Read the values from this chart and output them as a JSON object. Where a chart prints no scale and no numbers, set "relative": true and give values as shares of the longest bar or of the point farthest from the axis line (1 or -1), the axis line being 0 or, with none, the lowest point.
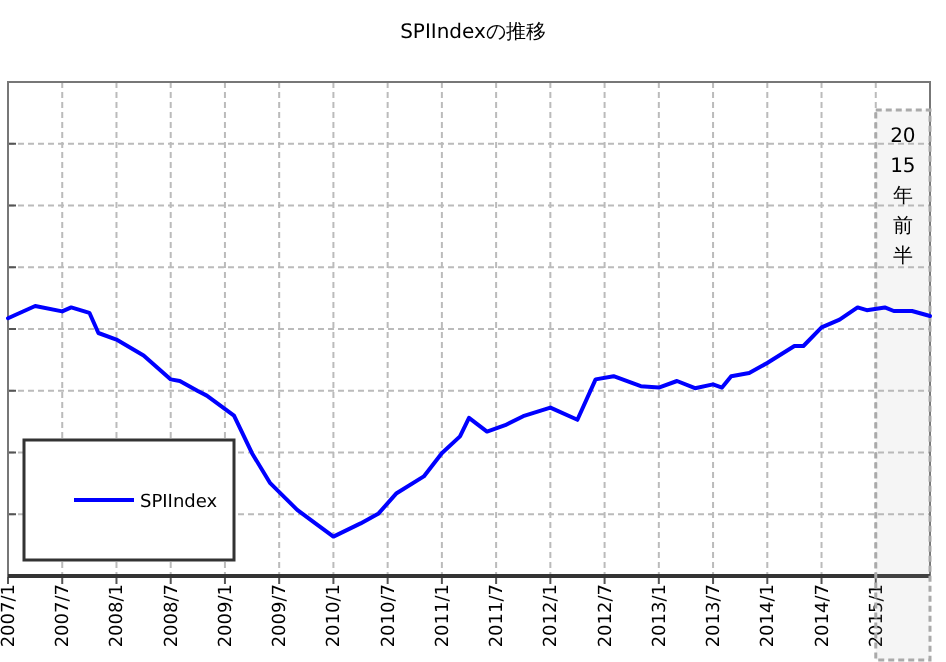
{
  "chart_data": {
    "type": "line",
    "title": "SPIIndexの推移",
    "relative": true,
    "x": [
      "2007-01",
      "2007-04",
      "2007-07",
      "2007-08",
      "2007-10",
      "2007-11",
      "2008-01",
      "2008-04",
      "2008-07",
      "2008-08",
      "2008-10",
      "2008-11",
      "2009-02",
      "2009-04",
      "2009-06",
      "2009-09",
      "2009-11",
      "2010-01",
      "2010-04",
      "2010-06",
      "2010-08",
      "2010-11",
      "2011-01",
      "2011-03",
      "2011-04",
      "2011-06",
      "2011-08",
      "2011-10",
      "2012-01",
      "2012-04",
      "2012-06",
      "2012-08",
      "2012-11",
      "2013-01",
      "2013-03",
      "2013-05",
      "2013-07",
      "2013-08",
      "2013-09",
      "2013-11",
      "2014-01",
      "2014-04",
      "2014-05",
      "2014-07",
      "2014-09",
      "2014-11",
      "2014-12",
      "2015-02",
      "2015-03",
      "2015-05",
      "2015-07"
    ],
    "series": [
      {
        "name": "SPIIndex",
        "color": "#0000ff",
        "values": [
          0.955,
          1.0,
          0.98,
          0.995,
          0.975,
          0.9,
          0.876,
          0.817,
          0.728,
          0.722,
          0.685,
          0.668,
          0.594,
          0.455,
          0.344,
          0.245,
          0.195,
          0.146,
          0.195,
          0.232,
          0.307,
          0.369,
          0.455,
          0.517,
          0.586,
          0.535,
          0.559,
          0.592,
          0.624,
          0.579,
          0.728,
          0.74,
          0.703,
          0.698,
          0.722,
          0.696,
          0.71,
          0.698,
          0.74,
          0.752,
          0.789,
          0.852,
          0.852,
          0.921,
          0.95,
          0.995,
          0.985,
          0.995,
          0.982,
          0.982,
          0.963
        ]
      }
    ],
    "xlim": [
      "2007-01",
      "2015-07"
    ],
    "xticks": [
      {
        "value": "2007-01",
        "label": "2007/1"
      },
      {
        "value": "2007-07",
        "label": "2007/7"
      },
      {
        "value": "2008-01",
        "label": "2008/1"
      },
      {
        "value": "2008-07",
        "label": "2008/7"
      },
      {
        "value": "2009-01",
        "label": "2009/1"
      },
      {
        "value": "2009-07",
        "label": "2009/7"
      },
      {
        "value": "2010-01",
        "label": "2010/1"
      },
      {
        "value": "2010-07",
        "label": "2010/7"
      },
      {
        "value": "2011-01",
        "label": "2011/1"
      },
      {
        "value": "2011-07",
        "label": "2011/7"
      },
      {
        "value": "2012-01",
        "label": "2012/1"
      },
      {
        "value": "2012-07",
        "label": "2012/7"
      },
      {
        "value": "2013-01",
        "label": "2013/1"
      },
      {
        "value": "2013-07",
        "label": "2013/7"
      },
      {
        "value": "2014-01",
        "label": "2014/1"
      },
      {
        "value": "2014-07",
        "label": "2014/7"
      },
      {
        "value": "2015-01",
        "label": "2015/1"
      }
    ],
    "bands": [
      {
        "axis": "x",
        "from": "2015-01",
        "to": "2015-07",
        "label": "2015年前半",
        "color": "#aaaaaa"
      }
    ],
    "grid": true,
    "legend": "bottom left",
    "marker": "none",
    "line_style": "solid"
  }
}
